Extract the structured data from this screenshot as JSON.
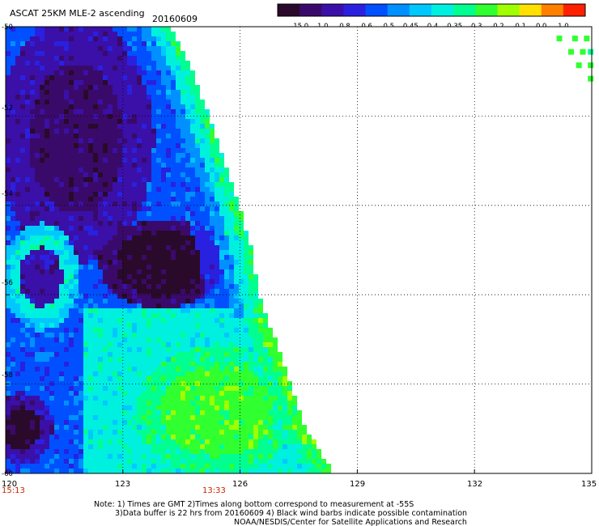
{
  "header": {
    "title": "ASCAT 25KM MLE-2 ascending",
    "date": "20160609"
  },
  "colorbar": {
    "labels": [
      "-15.0",
      "-1.0",
      "-0.8",
      "-0.6",
      "-0.5",
      "-0.45",
      "-0.4",
      "-0.35",
      "-0.3",
      "-0.2",
      "-0.1",
      "0.0",
      "1.0"
    ],
    "colors": [
      "#2a0a2a",
      "#3a0a6a",
      "#3a10a8",
      "#2a20e0",
      "#0050ff",
      "#0090ff",
      "#00c8ff",
      "#00f0e0",
      "#00ff90",
      "#30ff30",
      "#a0ff00",
      "#ffe000",
      "#ff8000",
      "#ff2000"
    ]
  },
  "map": {
    "lon_ticks": [
      "120",
      "123",
      "126",
      "129",
      "132",
      "135"
    ],
    "lat_ticks": [
      "-50",
      "-52",
      "-54",
      "-56",
      "-58",
      "-60"
    ],
    "time_labels": [
      "15:13",
      "13:33"
    ]
  },
  "notes": {
    "line1": "Note: 1) Times are GMT 2)Times along bottom correspond to measurement at -55S",
    "line2": "3)Data buffer is 22 hrs from 20160609 4) Black wind barbs indicate possible contamination",
    "line3": "NOAA/NESDIS/Center for Satellite Applications and Research"
  },
  "chart_data": {
    "type": "heatmap",
    "title": "ASCAT 25KM MLE-2 ascending",
    "date": "20160609",
    "variable": "MLE-2",
    "x_axis": {
      "ticks": [
        120,
        123,
        126,
        129,
        132,
        135
      ],
      "range": [
        120,
        135
      ]
    },
    "y_axis": {
      "ticks": [
        -50,
        -52,
        -54,
        -56,
        -58,
        -60
      ],
      "range": [
        -60,
        -50
      ]
    },
    "colorscale": {
      "boundaries": [
        -15.0,
        -1.0,
        -0.8,
        -0.6,
        -0.5,
        -0.45,
        -0.4,
        -0.35,
        -0.3,
        -0.2,
        -0.1,
        0.0,
        1.0
      ],
      "colors": [
        "#2a0a2a",
        "#3a0a6a",
        "#3a10a8",
        "#2a20e0",
        "#0050ff",
        "#0090ff",
        "#00c8ff",
        "#00f0e0",
        "#00ff90",
        "#30ff30",
        "#a0ff00",
        "#ffe000",
        "#ff8000",
        "#ff2000"
      ]
    },
    "swath_edge": [
      {
        "lat": -50.0,
        "lon": 124.2
      },
      {
        "lat": -51.0,
        "lon": 124.8
      },
      {
        "lat": -52.0,
        "lon": 125.2
      },
      {
        "lat": -53.0,
        "lon": 125.6
      },
      {
        "lat": -54.0,
        "lon": 126.0
      },
      {
        "lat": -55.0,
        "lon": 126.3
      },
      {
        "lat": -56.0,
        "lon": 126.5
      },
      {
        "lat": -57.0,
        "lon": 126.9
      },
      {
        "lat": -58.0,
        "lon": 127.3
      },
      {
        "lat": -59.0,
        "lon": 127.7
      },
      {
        "lat": -60.0,
        "lon": 128.4
      }
    ],
    "regions": [
      {
        "lat_range": [
          -55.5,
          -50.0
        ],
        "lon_range": [
          120.0,
          123.5
        ],
        "value_class": "-1.0 to -0.8"
      },
      {
        "lat_range": [
          -57.0,
          -54.0
        ],
        "lon_range": [
          123.0,
          125.5
        ],
        "value_class": "-15.0 to -1.0"
      },
      {
        "lat_range": [
          -58.0,
          -55.0
        ],
        "lon_range": [
          120.0,
          122.0
        ],
        "value_class": "-0.4 to -0.35"
      },
      {
        "lat_range": [
          -60.0,
          -56.5
        ],
        "lon_range": [
          122.5,
          127.5
        ],
        "value_class": "-0.3 to -0.2"
      },
      {
        "lat_range": [
          -60.0,
          -58.5
        ],
        "lon_range": [
          120.0,
          121.0
        ],
        "value_class": "-15.0 to -1.0"
      },
      {
        "lat_range": [
          -51.5,
          -50.0
        ],
        "lon_range": [
          134.5,
          135.0
        ],
        "value_class": "-0.2 to -0.1"
      }
    ]
  }
}
